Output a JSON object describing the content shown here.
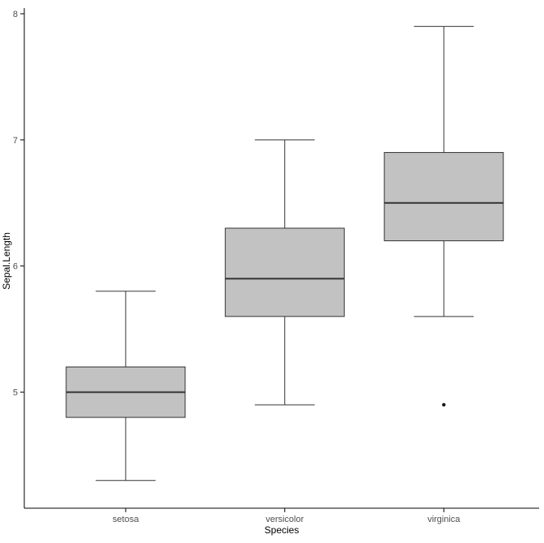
{
  "figure": {
    "background": "#ffffff"
  },
  "chart_data": {
    "type": "boxplot",
    "title": "",
    "xlabel": "Species",
    "ylabel": "Sepal.Length",
    "categories": [
      "setosa",
      "versicolor",
      "virginica"
    ],
    "series": [
      {
        "name": "setosa",
        "min": 4.3,
        "q1": 4.8,
        "median": 5.0,
        "q3": 5.2,
        "max": 5.8,
        "outliers": []
      },
      {
        "name": "versicolor",
        "min": 4.9,
        "q1": 5.6,
        "median": 5.9,
        "q3": 6.3,
        "max": 7.0,
        "outliers": []
      },
      {
        "name": "virginica",
        "min": 5.6,
        "q1": 6.2,
        "median": 6.5,
        "q3": 6.9,
        "max": 7.9,
        "outliers": [
          4.9
        ]
      }
    ],
    "yticks": [
      5,
      6,
      7,
      8
    ],
    "ylim": [
      4.08,
      8.0
    ],
    "grid": false,
    "legend": "none",
    "box_fill": "#c2c2c2",
    "box_stroke": "#333333",
    "median_color": "#333333",
    "axis_color": "#000000",
    "tick_label_color": "#4d4d4d",
    "axis_title_color": "#000000"
  }
}
